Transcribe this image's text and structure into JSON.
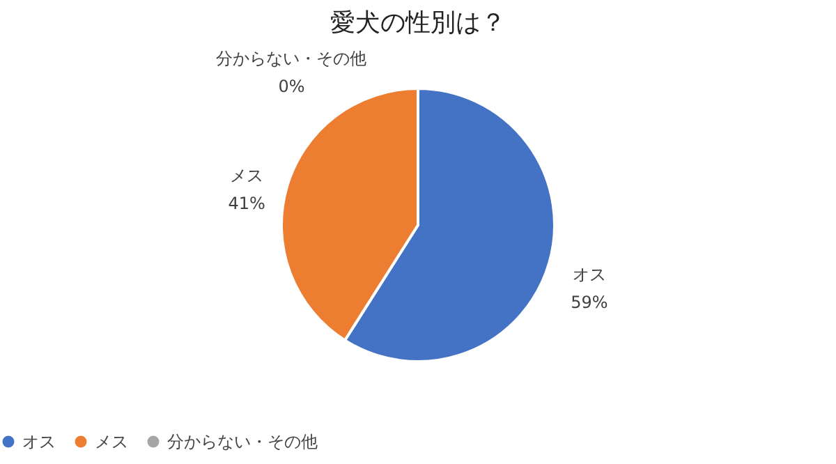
{
  "chart_data": {
    "type": "pie",
    "title": "愛犬の性別は？",
    "categories": [
      "オス",
      "メス",
      "分からない・その他"
    ],
    "values": [
      59,
      41,
      0
    ],
    "colors": [
      "#4472c4",
      "#ed7d31",
      "#a5a5a5"
    ],
    "value_labels": [
      "59%",
      "41%",
      "0%"
    ],
    "legend": "bottom"
  }
}
